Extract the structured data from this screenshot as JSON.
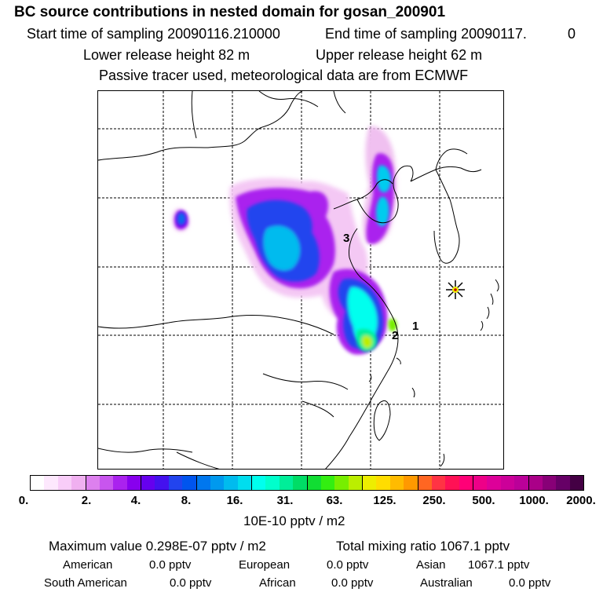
{
  "header": {
    "title": "BC  source contributions in nested domain for gosan_200901",
    "start_sampling": "Start time of sampling 20090116.210000",
    "end_sampling": "End time of sampling 20090117.",
    "end_sampling_value": "0",
    "lower_release": "Lower release height   82 m",
    "upper_release": "Upper release height   62 m",
    "tracer_note": "Passive tracer used, meteorological data are from ECMWF"
  },
  "map": {
    "cluster_labels": [
      "3",
      "2",
      "1"
    ],
    "receptor": "gosan-receptor"
  },
  "colorbar": {
    "colors": [
      "#ffffff",
      "#fde8fd",
      "#f8cdf8",
      "#f0b0f0",
      "#dd80ee",
      "#c855ee",
      "#aa22ee",
      "#8800ee",
      "#6600ee",
      "#4411ee",
      "#2244ee",
      "#0055ee",
      "#0077ee",
      "#0099ee",
      "#00bbee",
      "#00ddee",
      "#00ffee",
      "#00ffcc",
      "#00ee99",
      "#00dd66",
      "#11dd33",
      "#33ee11",
      "#77ee00",
      "#bbee00",
      "#eeee00",
      "#ffdd00",
      "#ffbb00",
      "#ff9900",
      "#ff6622",
      "#ff3344",
      "#ff1155",
      "#ff0077",
      "#ee0088",
      "#dd0099",
      "#cc0099",
      "#bb0099",
      "#aa0088",
      "#880077",
      "#660066",
      "#440044"
    ],
    "tick_labels": [
      "0.",
      "2.",
      "4.",
      "8.",
      "16.",
      "31.",
      "63.",
      "125.",
      "250.",
      "500.",
      "1000.",
      "2000."
    ],
    "units": "10E-10 pptv / m2"
  },
  "summary": {
    "max_value": "Maximum value  0.298E-07 pptv / m2",
    "total_mixing": "Total mixing ratio     1067.1 pptv"
  },
  "regions": [
    {
      "name": "American",
      "value": "0.0 pptv"
    },
    {
      "name": "European",
      "value": "0.0 pptv"
    },
    {
      "name": "Asian",
      "value": "1067.1 pptv"
    },
    {
      "name": "South American",
      "value": "0.0 pptv"
    },
    {
      "name": "African",
      "value": "0.0 pptv"
    },
    {
      "name": "Australian",
      "value": "0.0 pptv"
    }
  ]
}
